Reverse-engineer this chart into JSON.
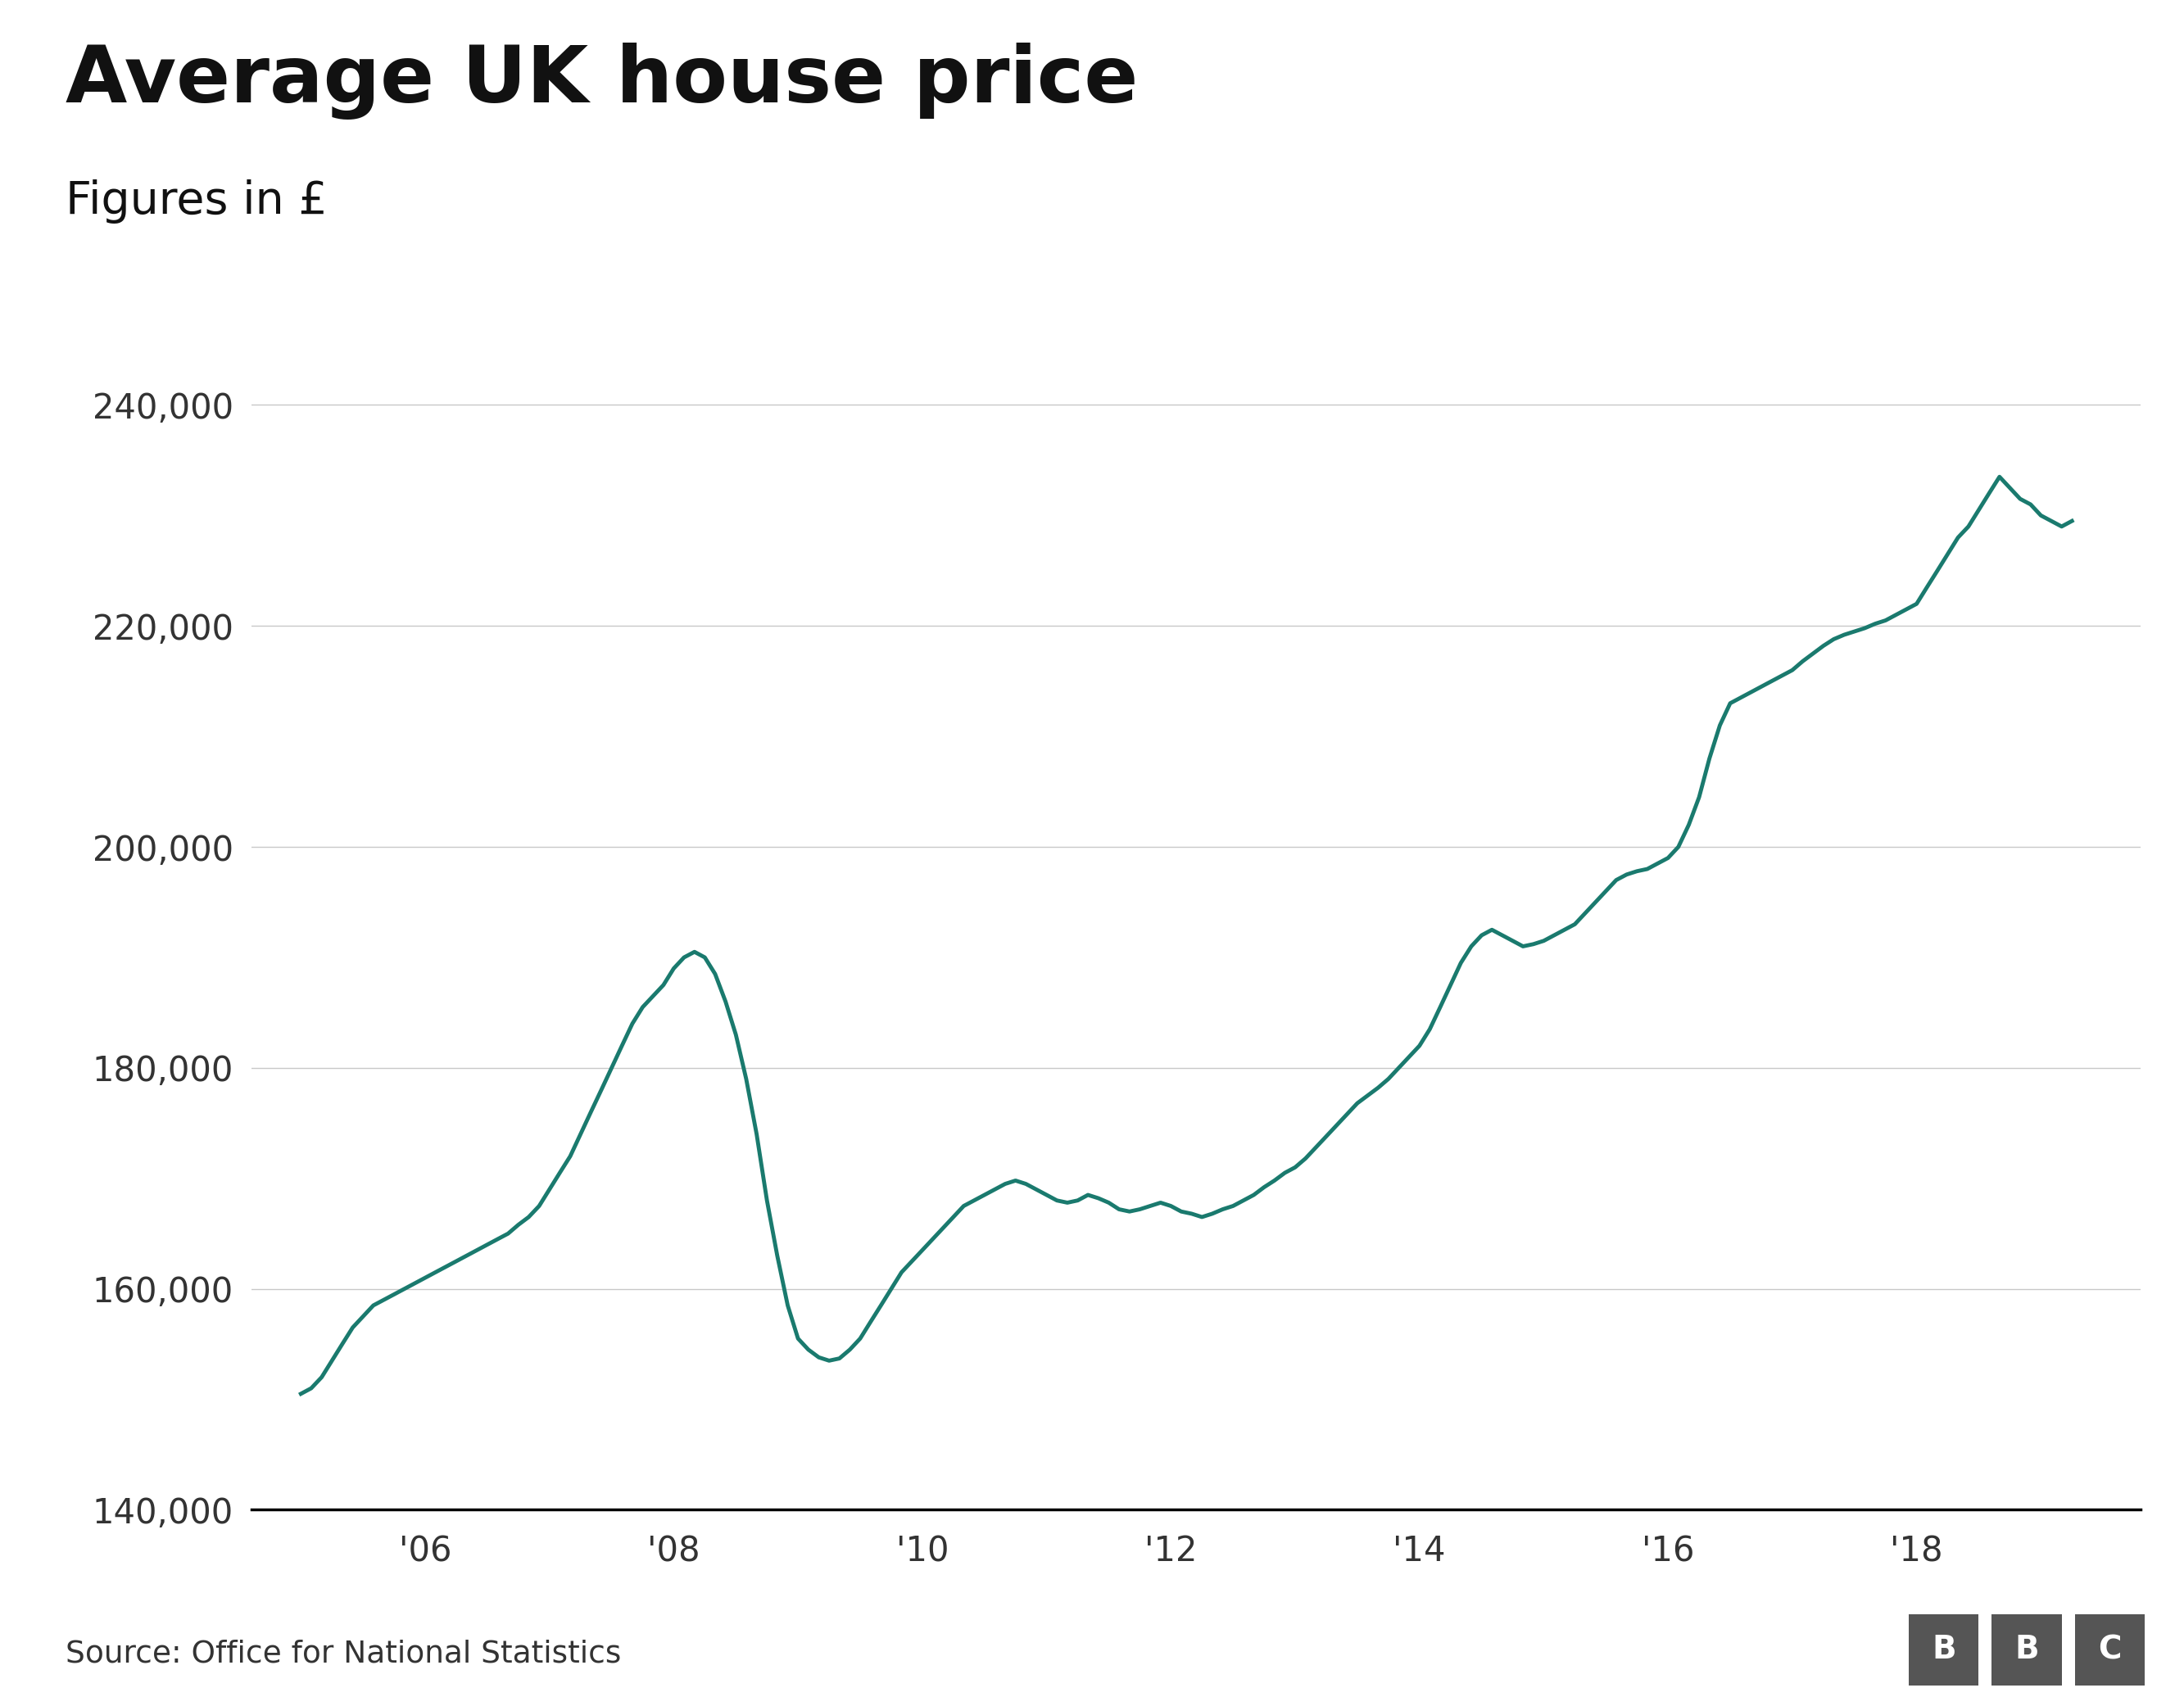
{
  "title": "Average UK house price",
  "subtitle": "Figures in £",
  "source": "Source: Office for National Statistics",
  "line_color": "#1a7a6e",
  "background_color": "#ffffff",
  "ylim": [
    140000,
    245000
  ],
  "yticks": [
    140000,
    160000,
    180000,
    200000,
    220000,
    240000
  ],
  "xtick_positions": [
    2006,
    2008,
    2010,
    2012,
    2014,
    2016,
    2018
  ],
  "xtick_labels": [
    "'06",
    "'08",
    "'10",
    "'12",
    "'14",
    "'16",
    "'18"
  ],
  "xlim": [
    2004.6,
    2019.8
  ],
  "line_width": 3.5,
  "x": [
    2005.0,
    2005.083,
    2005.167,
    2005.25,
    2005.333,
    2005.417,
    2005.5,
    2005.583,
    2005.667,
    2005.75,
    2005.833,
    2005.917,
    2006.0,
    2006.083,
    2006.167,
    2006.25,
    2006.333,
    2006.417,
    2006.5,
    2006.583,
    2006.667,
    2006.75,
    2006.833,
    2006.917,
    2007.0,
    2007.083,
    2007.167,
    2007.25,
    2007.333,
    2007.417,
    2007.5,
    2007.583,
    2007.667,
    2007.75,
    2007.833,
    2007.917,
    2008.0,
    2008.083,
    2008.167,
    2008.25,
    2008.333,
    2008.417,
    2008.5,
    2008.583,
    2008.667,
    2008.75,
    2008.833,
    2008.917,
    2009.0,
    2009.083,
    2009.167,
    2009.25,
    2009.333,
    2009.417,
    2009.5,
    2009.583,
    2009.667,
    2009.75,
    2009.833,
    2009.917,
    2010.0,
    2010.083,
    2010.167,
    2010.25,
    2010.333,
    2010.417,
    2010.5,
    2010.583,
    2010.667,
    2010.75,
    2010.833,
    2010.917,
    2011.0,
    2011.083,
    2011.167,
    2011.25,
    2011.333,
    2011.417,
    2011.5,
    2011.583,
    2011.667,
    2011.75,
    2011.833,
    2011.917,
    2012.0,
    2012.083,
    2012.167,
    2012.25,
    2012.333,
    2012.417,
    2012.5,
    2012.583,
    2012.667,
    2012.75,
    2012.833,
    2012.917,
    2013.0,
    2013.083,
    2013.167,
    2013.25,
    2013.333,
    2013.417,
    2013.5,
    2013.583,
    2013.667,
    2013.75,
    2013.833,
    2013.917,
    2014.0,
    2014.083,
    2014.167,
    2014.25,
    2014.333,
    2014.417,
    2014.5,
    2014.583,
    2014.667,
    2014.75,
    2014.833,
    2014.917,
    2015.0,
    2015.083,
    2015.167,
    2015.25,
    2015.333,
    2015.417,
    2015.5,
    2015.583,
    2015.667,
    2015.75,
    2015.833,
    2015.917,
    2016.0,
    2016.083,
    2016.167,
    2016.25,
    2016.333,
    2016.417,
    2016.5,
    2016.583,
    2016.667,
    2016.75,
    2016.833,
    2016.917,
    2017.0,
    2017.083,
    2017.167,
    2017.25,
    2017.333,
    2017.417,
    2017.5,
    2017.583,
    2017.667,
    2017.75,
    2017.833,
    2017.917,
    2018.0,
    2018.083,
    2018.167,
    2018.25,
    2018.333,
    2018.417,
    2018.5,
    2018.583,
    2018.667,
    2018.75,
    2018.833,
    2018.917,
    2019.0,
    2019.083,
    2019.167,
    2019.25
  ],
  "y": [
    150500,
    151000,
    152000,
    153500,
    155000,
    156500,
    157500,
    158500,
    159000,
    159500,
    160000,
    160500,
    161000,
    161500,
    162000,
    162500,
    163000,
    163500,
    164000,
    164500,
    165000,
    165800,
    166500,
    167500,
    169000,
    170500,
    172000,
    174000,
    176000,
    178000,
    180000,
    182000,
    184000,
    185500,
    186500,
    187500,
    189000,
    190000,
    190500,
    190000,
    188500,
    186000,
    183000,
    179000,
    174000,
    168000,
    163000,
    158500,
    155500,
    154500,
    153800,
    153500,
    153700,
    154500,
    155500,
    157000,
    158500,
    160000,
    161500,
    162500,
    163500,
    164500,
    165500,
    166500,
    167500,
    168000,
    168500,
    169000,
    169500,
    169800,
    169500,
    169000,
    168500,
    168000,
    167800,
    168000,
    168500,
    168200,
    167800,
    167200,
    167000,
    167200,
    167500,
    167800,
    167500,
    167000,
    166800,
    166500,
    166800,
    167200,
    167500,
    168000,
    168500,
    169200,
    169800,
    170500,
    171000,
    171800,
    172800,
    173800,
    174800,
    175800,
    176800,
    177500,
    178200,
    179000,
    180000,
    181000,
    182000,
    183500,
    185500,
    187500,
    189500,
    191000,
    192000,
    192500,
    192000,
    191500,
    191000,
    191200,
    191500,
    192000,
    192500,
    193000,
    194000,
    195000,
    196000,
    197000,
    197500,
    197800,
    198000,
    198500,
    199000,
    200000,
    202000,
    204500,
    208000,
    211000,
    213000,
    213500,
    214000,
    214500,
    215000,
    215500,
    216000,
    216800,
    217500,
    218200,
    218800,
    219200,
    219500,
    219800,
    220200,
    220500,
    221000,
    221500,
    222000,
    223500,
    225000,
    226500,
    228000,
    229000,
    230500,
    232000,
    233500,
    232500,
    231500,
    231000,
    230000,
    229500,
    229000,
    229500
  ]
}
